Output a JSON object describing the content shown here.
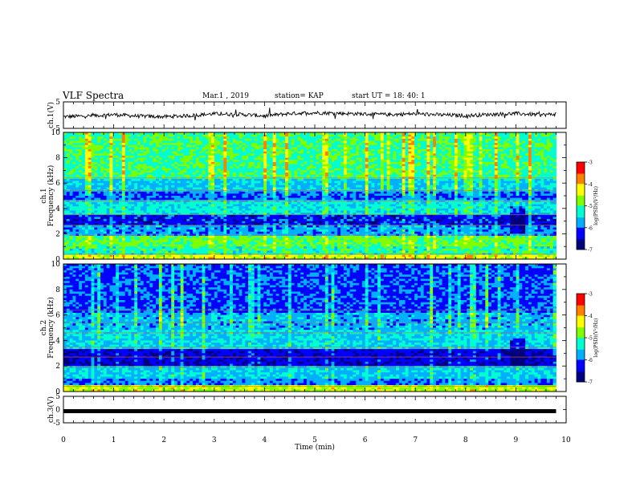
{
  "header": {
    "title": "VLF Spectra",
    "date": "Mar.1  , 2019",
    "station": "station= KAP",
    "start_ut": "start  UT  =   18: 40: 1"
  },
  "chart_data": [
    {
      "id": "ch1-waveform",
      "type": "line",
      "ylabel": "ch.1(V)",
      "ylim": [
        -5,
        5
      ],
      "yticks": [
        "5",
        "-5"
      ],
      "xlim": [
        0,
        10
      ],
      "description_values": "noisy voltage trace fluctuating between about -1.5 and 1.5 V over 0-9.8 min",
      "x": [
        0,
        0.5,
        1,
        1.5,
        2,
        2.5,
        3,
        3.5,
        4,
        4.5,
        5,
        5.5,
        6,
        6.5,
        7,
        7.5,
        8,
        8.5,
        9,
        9.5,
        9.8
      ],
      "values": [
        -0.6,
        -0.3,
        0.2,
        -0.4,
        -0.6,
        -0.2,
        0.5,
        0.3,
        -0.3,
        0.6,
        0.9,
        0.7,
        0.4,
        0.2,
        0.5,
        0.1,
        -0.2,
        0.3,
        0.6,
        0.1,
        0.4
      ]
    },
    {
      "id": "ch1-spectrogram",
      "type": "heatmap",
      "ylabel": "ch.1\nFrequency (kHz)",
      "ylim": [
        0,
        10
      ],
      "yticks": [
        "0",
        "2",
        "4",
        "6",
        "8",
        "10"
      ],
      "xlim": [
        0,
        10
      ],
      "x_end": 9.8,
      "colorbar": {
        "label": "log(PSD)(V²/Hz)",
        "range": [
          -7,
          -3
        ],
        "ticks": [
          "-3",
          "-4",
          "-5",
          "-6",
          "-7"
        ]
      },
      "bands": [
        {
          "y": [
            0,
            0.4
          ],
          "level": -4.4
        },
        {
          "y": [
            0.4,
            1.0
          ],
          "level": -5.2
        },
        {
          "y": [
            1.0,
            1.9
          ],
          "level": -4.9
        },
        {
          "y": [
            1.9,
            2.7
          ],
          "level": -5.8
        },
        {
          "y": [
            2.7,
            3.5
          ],
          "level": -6.3
        },
        {
          "y": [
            3.5,
            4.6
          ],
          "level": -5.4
        },
        {
          "y": [
            4.6,
            5.4
          ],
          "level": -6.0
        },
        {
          "y": [
            5.4,
            6.4
          ],
          "level": -5.6
        },
        {
          "y": [
            6.4,
            10.0
          ],
          "level": -5.1
        }
      ]
    },
    {
      "id": "ch2-spectrogram",
      "type": "heatmap",
      "ylabel": "ch.2\nFrequency (kHz)",
      "ylim": [
        0,
        10
      ],
      "yticks": [
        "0",
        "2",
        "4",
        "6",
        "8",
        "10"
      ],
      "xlim": [
        0,
        10
      ],
      "x_end": 9.8,
      "colorbar": {
        "label": "log(PSD)(V²/Hz)",
        "range": [
          -7,
          -3
        ],
        "ticks": [
          "-3",
          "-4",
          "-5",
          "-6",
          "-7"
        ]
      },
      "bands": [
        {
          "y": [
            0,
            0.5
          ],
          "level": -4.6
        },
        {
          "y": [
            0.5,
            1.0
          ],
          "level": -5.9
        },
        {
          "y": [
            1.0,
            2.0
          ],
          "level": -5.6
        },
        {
          "y": [
            2.0,
            3.4
          ],
          "level": -6.4
        },
        {
          "y": [
            3.4,
            4.8
          ],
          "level": -5.5
        },
        {
          "y": [
            4.8,
            6.2
          ],
          "level": -5.7
        },
        {
          "y": [
            6.2,
            10.0
          ],
          "level": -6.1
        }
      ]
    },
    {
      "id": "ch3-waveform",
      "type": "line",
      "ylabel": "ch.3(V)",
      "ylim": [
        -5,
        5
      ],
      "yticks": [
        "5",
        "0",
        "-5"
      ],
      "xlim": [
        0,
        10
      ],
      "xlabel": "Time  (min)",
      "xticks": [
        "0",
        "1",
        "2",
        "3",
        "4",
        "5",
        "6",
        "7",
        "8",
        "9",
        "10"
      ],
      "x": [
        0,
        9.8
      ],
      "values": [
        -0.6,
        -0.6
      ]
    }
  ],
  "colors": {
    "colormap": [
      "#00007f",
      "#0000ff",
      "#00b0ff",
      "#00ffd0",
      "#7fff00",
      "#ffff00",
      "#ff8000",
      "#ff0000",
      "#ffffff"
    ]
  }
}
